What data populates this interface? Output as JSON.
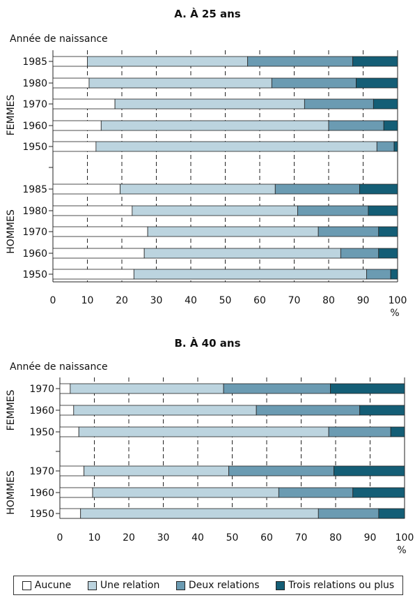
{
  "legend": {
    "items": [
      {
        "label": "Aucune",
        "color": "#ffffff"
      },
      {
        "label": "Une relation",
        "color": "#bcd4df"
      },
      {
        "label": "Deux relations",
        "color": "#6b9bb2"
      },
      {
        "label": "Trois relations ou plus",
        "color": "#145e76"
      }
    ]
  },
  "chart_data": [
    {
      "type": "bar",
      "orientation": "horizontal",
      "stacked": true,
      "title": "A. À 25 ans",
      "row_header": "Année de naissance",
      "xlim": [
        0,
        100
      ],
      "xticks": [
        0,
        10,
        20,
        30,
        40,
        50,
        60,
        70,
        80,
        90,
        100
      ],
      "xunit": "%",
      "grid": "vertical dashed",
      "series_names": [
        "Aucune",
        "Une relation",
        "Deux relations",
        "Trois relations ou plus"
      ],
      "groups": [
        {
          "label": "FEMMES",
          "rows": [
            {
              "year": "1985",
              "values": [
                10,
                46.5,
                30.5,
                13
              ]
            },
            {
              "year": "1980",
              "values": [
                10.5,
                53,
                24.5,
                12
              ]
            },
            {
              "year": "1970",
              "values": [
                18,
                55,
                20,
                7
              ]
            },
            {
              "year": "1960",
              "values": [
                14,
                66,
                16,
                4
              ]
            },
            {
              "year": "1950",
              "values": [
                12.5,
                81.5,
                5,
                1
              ]
            }
          ]
        },
        {
          "label": "HOMMES",
          "rows": [
            {
              "year": "1985",
              "values": [
                19.5,
                45,
                24.5,
                11
              ]
            },
            {
              "year": "1980",
              "values": [
                23,
                48,
                20.5,
                8.5
              ]
            },
            {
              "year": "1970",
              "values": [
                27.5,
                49.5,
                17.5,
                5.5
              ]
            },
            {
              "year": "1960",
              "values": [
                26.5,
                57,
                11,
                5.5
              ]
            },
            {
              "year": "1950",
              "values": [
                23.5,
                67.5,
                7,
                2
              ]
            }
          ]
        }
      ]
    },
    {
      "type": "bar",
      "orientation": "horizontal",
      "stacked": true,
      "title": "B. À 40 ans",
      "row_header": "Année de naissance",
      "xlim": [
        0,
        100
      ],
      "xticks": [
        0,
        10,
        20,
        30,
        40,
        50,
        60,
        70,
        80,
        90,
        100
      ],
      "xunit": "%",
      "grid": "vertical dashed",
      "series_names": [
        "Aucune",
        "Une relation",
        "Deux relations",
        "Trois relations ou plus"
      ],
      "groups": [
        {
          "label": "FEMMES",
          "rows": [
            {
              "year": "1970",
              "values": [
                3,
                44.5,
                31,
                21.5
              ]
            },
            {
              "year": "1960",
              "values": [
                4,
                53,
                30,
                13
              ]
            },
            {
              "year": "1950",
              "values": [
                5.5,
                72.5,
                18,
                4
              ]
            }
          ]
        },
        {
          "label": "HOMMES",
          "rows": [
            {
              "year": "1970",
              "values": [
                7,
                42,
                30.5,
                20.5
              ]
            },
            {
              "year": "1960",
              "values": [
                9.5,
                54,
                21.5,
                15
              ]
            },
            {
              "year": "1950",
              "values": [
                6,
                69,
                17.5,
                7.5
              ]
            }
          ]
        }
      ]
    }
  ]
}
